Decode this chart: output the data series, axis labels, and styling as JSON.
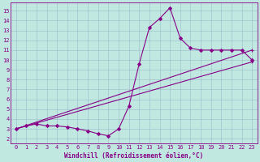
{
  "background_color": "#c0e8e0",
  "line_color": "#880088",
  "markersize": 2.0,
  "linewidth": 0.8,
  "xlabel": "Windchill (Refroidissement éolien,°C)",
  "xlabel_fontsize": 5.5,
  "xlabel_color": "#880088",
  "tick_color": "#880088",
  "tick_fontsize": 5.0,
  "xlim": [
    -0.5,
    23.5
  ],
  "ylim": [
    1.5,
    15.8
  ],
  "xticks": [
    0,
    1,
    2,
    3,
    4,
    5,
    6,
    7,
    8,
    9,
    10,
    11,
    12,
    13,
    14,
    15,
    16,
    17,
    18,
    19,
    20,
    21,
    22,
    23
  ],
  "yticks": [
    2,
    3,
    4,
    5,
    6,
    7,
    8,
    9,
    10,
    11,
    12,
    13,
    14,
    15
  ],
  "grid_color": "#99bbcc",
  "series": [
    {
      "x": [
        0,
        1,
        2,
        3,
        4,
        5,
        6,
        7,
        8,
        9,
        10,
        11,
        12,
        13,
        14,
        15,
        16,
        17,
        18,
        19,
        20,
        21,
        22,
        23
      ],
      "y": [
        3.0,
        3.3,
        3.5,
        3.3,
        3.3,
        3.2,
        3.0,
        2.8,
        2.5,
        2.3,
        3.0,
        5.3,
        9.6,
        13.3,
        14.2,
        15.3,
        12.2,
        11.2,
        11.0,
        11.0,
        11.0,
        11.0,
        11.0,
        10.0
      ]
    },
    {
      "x": [
        0,
        23
      ],
      "y": [
        3.0,
        11.0
      ]
    },
    {
      "x": [
        0,
        23
      ],
      "y": [
        3.0,
        9.8
      ]
    }
  ]
}
